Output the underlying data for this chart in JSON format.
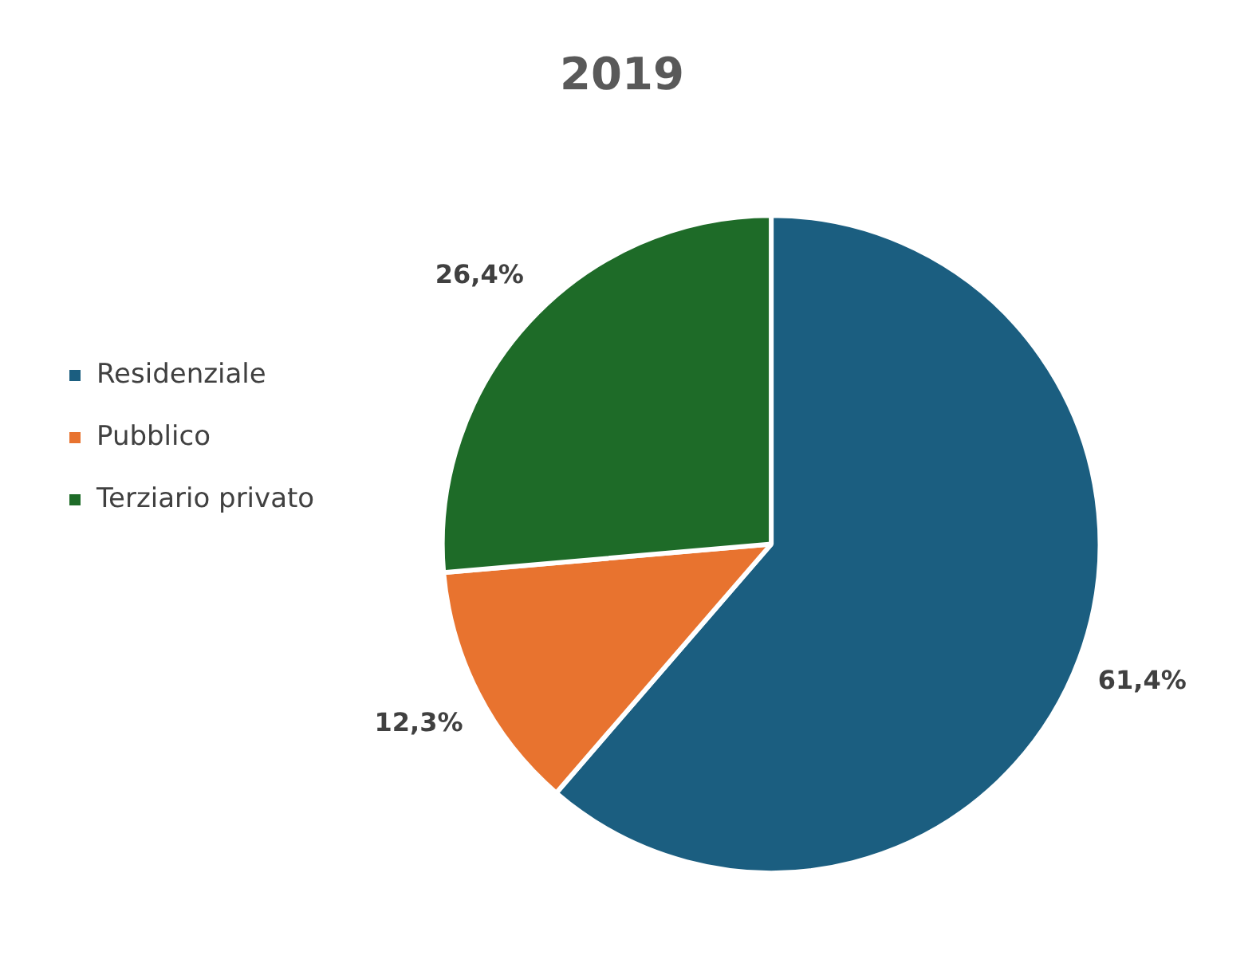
{
  "chart_data": {
    "type": "pie",
    "title": "2019",
    "categories": [
      "Residenziale",
      "Pubblico",
      "Terziario privato"
    ],
    "values": [
      61.4,
      12.3,
      26.4
    ],
    "colors": [
      "#1b5e80",
      "#e8732f",
      "#1e6b28"
    ],
    "value_labels": [
      "61,4%",
      "12,3%",
      "26,4%"
    ],
    "legend": "left"
  }
}
